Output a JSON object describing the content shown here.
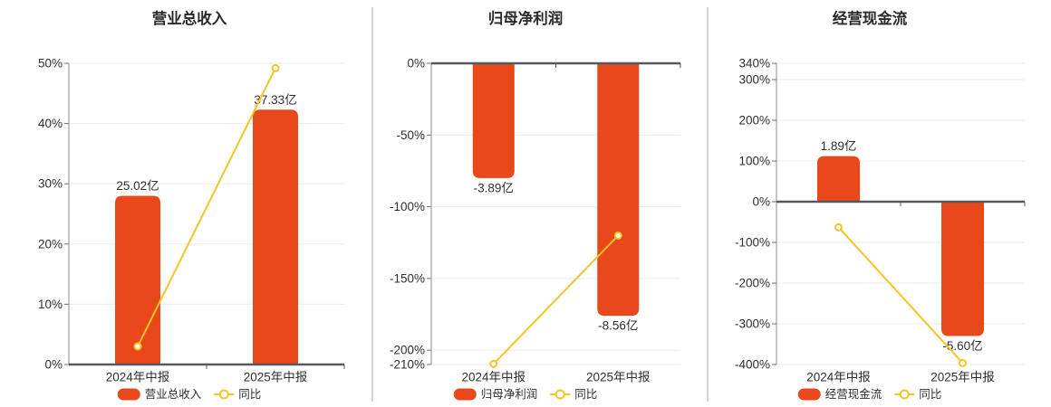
{
  "colors": {
    "bar": "#e8481a",
    "line": "#f5c425",
    "marker_fill": "#ffffff",
    "grid": "#e7ebf3",
    "zero_axis": "#55585e",
    "y_axis_line": "#8b8e93",
    "tick": "#6a6d72",
    "text": "#2f2f2f",
    "title": "#2a2a2a",
    "divider": "#a9a9a9",
    "background": "#ffffff"
  },
  "chart_data": [
    {
      "type": "bar",
      "title": "营业总收入",
      "categories": [
        "2024年中报",
        "2025年中报"
      ],
      "bar_series": {
        "name": "营业总收入",
        "unit": "亿",
        "values": [
          25.02,
          37.33
        ],
        "value_labels": [
          "25.02亿",
          "37.33亿"
        ],
        "plotted_pct": [
          28.0,
          42.3
        ],
        "label_position": [
          "above",
          "above"
        ]
      },
      "line_series": {
        "name": "同比",
        "unit": "%",
        "values_pct": [
          3.0,
          49.2
        ]
      },
      "y_axis": {
        "min": 0,
        "max": 50,
        "unit": "%",
        "tick_values": [
          50,
          40,
          30,
          20,
          10,
          0
        ],
        "tick_labels": [
          "50%",
          "40%",
          "30%",
          "20%",
          "10%",
          "0%"
        ]
      },
      "legend": {
        "bar_label": "营业总收入",
        "line_label": "同比"
      },
      "legend_position": "bottom",
      "grid": true
    },
    {
      "type": "bar",
      "title": "归母净利润",
      "categories": [
        "2024年中报",
        "2025年中报"
      ],
      "bar_series": {
        "name": "归母净利润",
        "unit": "亿",
        "values": [
          -3.89,
          -8.56
        ],
        "value_labels": [
          "-3.89亿",
          "-8.56亿"
        ],
        "plotted_pct": [
          -80,
          -176
        ],
        "label_position": [
          "below",
          "below"
        ]
      },
      "line_series": {
        "name": "同比",
        "unit": "%",
        "values_pct": [
          -209.6,
          -120.1
        ]
      },
      "y_axis": {
        "min": -210,
        "max": 0,
        "unit": "%",
        "tick_values": [
          0,
          -50,
          -100,
          -150,
          -200,
          -210
        ],
        "tick_labels": [
          "0%",
          "-50%",
          "-100%",
          "-150%",
          "-200%",
          "-210%"
        ]
      },
      "legend": {
        "bar_label": "归母净利润",
        "line_label": "同比"
      },
      "legend_position": "bottom",
      "grid": true
    },
    {
      "type": "bar",
      "title": "经营现金流",
      "categories": [
        "2024年中报",
        "2025年中报"
      ],
      "bar_series": {
        "name": "经营现金流",
        "unit": "亿",
        "values": [
          1.89,
          -5.6
        ],
        "value_labels": [
          "1.89亿",
          "-5.60亿"
        ],
        "plotted_pct": [
          112,
          -330
        ],
        "label_position": [
          "above",
          "below"
        ]
      },
      "line_series": {
        "name": "同比",
        "unit": "%",
        "values_pct": [
          -63,
          -396.3
        ]
      },
      "y_axis": {
        "min": -400,
        "max": 340,
        "unit": "%",
        "tick_values": [
          340,
          300,
          200,
          100,
          0,
          -100,
          -200,
          -300,
          -400
        ],
        "tick_labels": [
          "340%",
          "300%",
          "200%",
          "100%",
          "0%",
          "-100%",
          "-200%",
          "-300%",
          "-400%"
        ]
      },
      "legend": {
        "bar_label": "经营现金流",
        "line_label": "同比"
      },
      "legend_position": "bottom",
      "grid": true
    }
  ]
}
